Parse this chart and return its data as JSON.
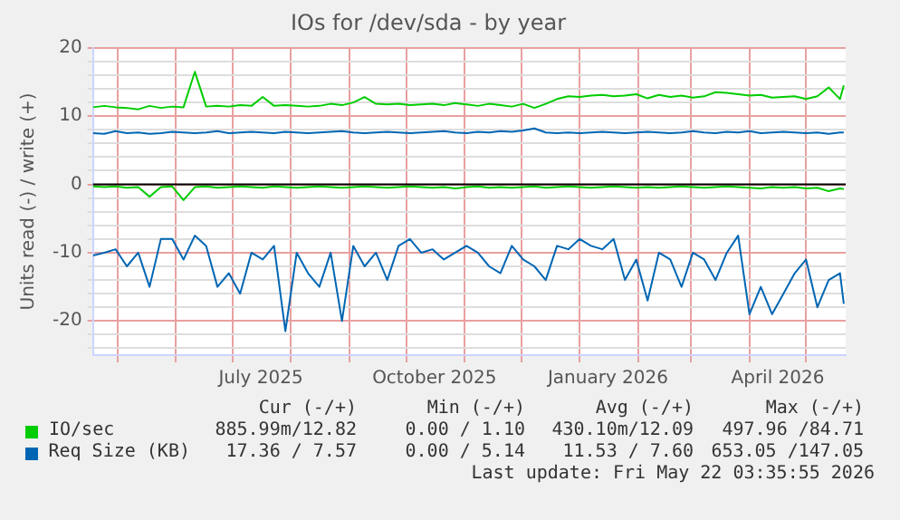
{
  "chart_data": {
    "type": "line",
    "title": "IOs for /dev/sda - by year",
    "ylabel": "Units read (-) / write (+)",
    "x": [
      "2025-04-18",
      "2025-04-24",
      "2025-04-30",
      "2025-05-06",
      "2025-05-12",
      "2025-05-18",
      "2025-05-24",
      "2025-05-30",
      "2025-06-05",
      "2025-06-11",
      "2025-06-17",
      "2025-06-23",
      "2025-06-29",
      "2025-07-05",
      "2025-07-11",
      "2025-07-17",
      "2025-07-23",
      "2025-07-29",
      "2025-08-04",
      "2025-08-10",
      "2025-08-16",
      "2025-08-22",
      "2025-08-28",
      "2025-09-03",
      "2025-09-09",
      "2025-09-15",
      "2025-09-21",
      "2025-09-27",
      "2025-10-03",
      "2025-10-09",
      "2025-10-15",
      "2025-10-21",
      "2025-10-27",
      "2025-11-02",
      "2025-11-08",
      "2025-11-14",
      "2025-11-20",
      "2025-11-26",
      "2025-12-02",
      "2025-12-08",
      "2025-12-14",
      "2025-12-20",
      "2025-12-26",
      "2026-01-01",
      "2026-01-07",
      "2026-01-13",
      "2026-01-19",
      "2026-01-25",
      "2026-01-31",
      "2026-02-06",
      "2026-02-12",
      "2026-02-18",
      "2026-02-24",
      "2026-03-02",
      "2026-03-08",
      "2026-03-14",
      "2026-03-20",
      "2026-03-26",
      "2026-04-01",
      "2026-04-07",
      "2026-04-13",
      "2026-04-19",
      "2026-04-25",
      "2026-05-01",
      "2026-05-07",
      "2026-05-13",
      "2026-05-19",
      "2026-05-21"
    ],
    "series": [
      {
        "name": "IO/sec",
        "color": "#00cc00",
        "values": [
          11.3,
          11.5,
          11.3,
          11.2,
          11.0,
          11.5,
          11.2,
          11.4,
          11.3,
          16.5,
          11.4,
          11.5,
          11.4,
          11.6,
          11.5,
          12.8,
          11.5,
          11.6,
          11.5,
          11.4,
          11.5,
          11.8,
          11.6,
          12.0,
          12.8,
          11.8,
          11.7,
          11.8,
          11.6,
          11.7,
          11.8,
          11.6,
          11.9,
          11.7,
          11.5,
          11.8,
          11.6,
          11.4,
          11.8,
          11.2,
          11.8,
          12.5,
          12.9,
          12.8,
          13.0,
          13.1,
          12.9,
          13.0,
          13.2,
          12.6,
          13.1,
          12.8,
          13.0,
          12.7,
          12.9,
          13.5,
          13.4,
          13.2,
          13.0,
          13.1,
          12.7,
          12.8,
          12.9,
          12.5,
          12.9,
          14.2,
          12.5,
          14.5
        ]
      },
      {
        "color": "#00cc00",
        "values": [
          -0.3,
          -0.4,
          -0.3,
          -0.5,
          -0.4,
          -1.8,
          -0.4,
          -0.3,
          -2.3,
          -0.4,
          -0.3,
          -0.5,
          -0.4,
          -0.3,
          -0.4,
          -0.5,
          -0.3,
          -0.4,
          -0.5,
          -0.4,
          -0.3,
          -0.4,
          -0.5,
          -0.4,
          -0.3,
          -0.4,
          -0.5,
          -0.4,
          -0.3,
          -0.4,
          -0.5,
          -0.4,
          -0.6,
          -0.4,
          -0.3,
          -0.5,
          -0.4,
          -0.5,
          -0.4,
          -0.3,
          -0.5,
          -0.4,
          -0.3,
          -0.4,
          -0.5,
          -0.4,
          -0.3,
          -0.4,
          -0.5,
          -0.4,
          -0.5,
          -0.4,
          -0.3,
          -0.4,
          -0.5,
          -0.4,
          -0.3,
          -0.4,
          -0.5,
          -0.6,
          -0.4,
          -0.5,
          -0.4,
          -0.6,
          -0.5,
          -1.0,
          -0.6,
          -0.7
        ]
      },
      {
        "name": "Req Size (KB)",
        "color": "#0066b3",
        "values": [
          7.5,
          7.4,
          7.8,
          7.5,
          7.6,
          7.4,
          7.5,
          7.7,
          7.6,
          7.5,
          7.6,
          7.8,
          7.5,
          7.6,
          7.7,
          7.6,
          7.5,
          7.7,
          7.6,
          7.5,
          7.6,
          7.7,
          7.8,
          7.6,
          7.5,
          7.6,
          7.7,
          7.6,
          7.5,
          7.6,
          7.7,
          7.8,
          7.6,
          7.5,
          7.7,
          7.6,
          7.8,
          7.7,
          7.9,
          8.2,
          7.6,
          7.5,
          7.6,
          7.5,
          7.6,
          7.7,
          7.6,
          7.5,
          7.6,
          7.7,
          7.6,
          7.5,
          7.6,
          7.8,
          7.6,
          7.5,
          7.7,
          7.6,
          7.8,
          7.5,
          7.6,
          7.7,
          7.6,
          7.5,
          7.6,
          7.4,
          7.6,
          7.6
        ]
      },
      {
        "color": "#0066b3",
        "values": [
          -10.4,
          -10,
          -9.5,
          -12,
          -10,
          -15,
          -8,
          -8,
          -11,
          -7.5,
          -9,
          -15,
          -13,
          -16,
          -10,
          -11,
          -9,
          -21.5,
          -10,
          -13,
          -15,
          -10,
          -20,
          -9,
          -12,
          -10,
          -14,
          -9,
          -8,
          -10,
          -9.5,
          -11,
          -10,
          -9,
          -10,
          -12,
          -13,
          -9,
          -11,
          -12,
          -14,
          -9,
          -9.5,
          -8,
          -9,
          -9.5,
          -8,
          -14,
          -11,
          -17,
          -10,
          -11,
          -15,
          -10,
          -11,
          -14,
          -10,
          -7.5,
          -19,
          -15,
          -19,
          -16,
          -13,
          -11,
          -18,
          -14,
          -13,
          -17.5
        ]
      }
    ],
    "xlim": [
      "2025-04-18",
      "2026-05-22"
    ],
    "xticks": [
      {
        "value": "2025-05-01",
        "label": null
      },
      {
        "value": "2025-06-01",
        "label": null
      },
      {
        "value": "2025-07-01",
        "label": null
      },
      {
        "value": "2025-07-16",
        "label": "July 2025"
      },
      {
        "value": "2025-08-01",
        "label": null
      },
      {
        "value": "2025-09-01",
        "label": null
      },
      {
        "value": "2025-10-01",
        "label": null
      },
      {
        "value": "2025-10-16",
        "label": "October 2025"
      },
      {
        "value": "2025-11-01",
        "label": null
      },
      {
        "value": "2025-12-01",
        "label": null
      },
      {
        "value": "2026-01-01",
        "label": null
      },
      {
        "value": "2026-01-16",
        "label": "January 2026"
      },
      {
        "value": "2026-02-01",
        "label": null
      },
      {
        "value": "2026-03-01",
        "label": null
      },
      {
        "value": "2026-04-01",
        "label": null
      },
      {
        "value": "2026-04-16",
        "label": "April 2026"
      },
      {
        "value": "2026-05-01",
        "label": null
      }
    ],
    "ylim": [
      -25,
      20
    ],
    "yticks": [
      {
        "value": -24,
        "label": null
      },
      {
        "value": -22,
        "label": null
      },
      -20,
      {
        "value": -18,
        "label": null
      },
      {
        "value": -16,
        "label": null
      },
      {
        "value": -14,
        "label": null
      },
      {
        "value": -12,
        "label": null
      },
      -10,
      {
        "value": -8,
        "label": null
      },
      {
        "value": -6,
        "label": null
      },
      {
        "value": -4,
        "label": null
      },
      {
        "value": -2,
        "label": null
      },
      0,
      {
        "value": 2,
        "label": null
      },
      {
        "value": 4,
        "label": null
      },
      {
        "value": 6,
        "label": null
      },
      {
        "value": 8,
        "label": null
      },
      10,
      {
        "value": 12,
        "label": null
      },
      {
        "value": 14,
        "label": null
      },
      {
        "value": 16,
        "label": null
      },
      {
        "value": 18,
        "label": null
      },
      20
    ],
    "ref_lines": [
      {
        "axis": "y",
        "value": 0,
        "color": "#000000"
      }
    ],
    "grid": true,
    "legend": "bottom",
    "marker": "none",
    "line_style": "solid",
    "annotations": [
      "Cur (-/+)",
      "Min (-/+)",
      "Avg (-/+)",
      "Max (-/+)",
      "885.99m/12.82",
      "0.00 / 1.10",
      "430.10m/12.09",
      "497.96 /84.71",
      "17.36 / 7.57",
      "0.00 / 5.14",
      "11.53 / 7.60",
      "653.05 /147.05",
      "Last update: Fri May 22 03:35:55 2026"
    ]
  }
}
